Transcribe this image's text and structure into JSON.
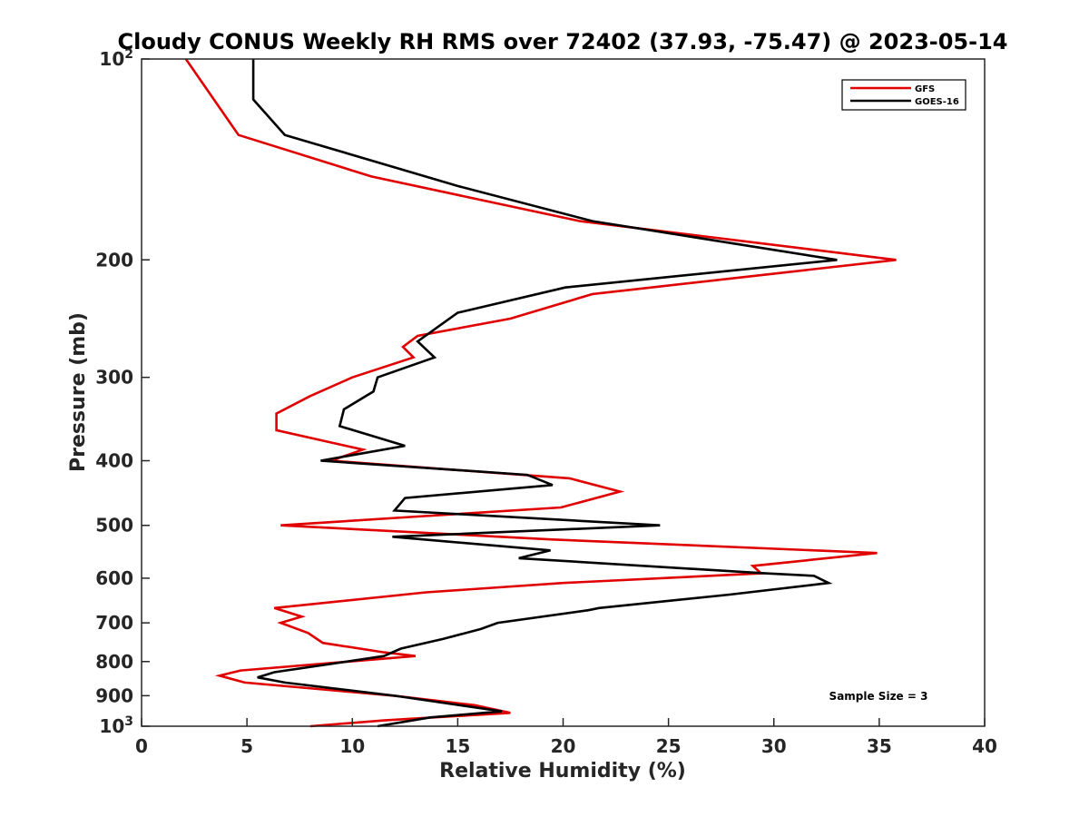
{
  "chart_data": {
    "type": "line",
    "title": "Cloudy CONUS Weekly RH RMS over 72402 (37.93, -75.47) @ 2023-05-14",
    "xlabel": "Relative Humidity (%)",
    "ylabel": "Pressure (mb)",
    "xlim": [
      0,
      40
    ],
    "ylim": [
      100,
      1000
    ],
    "y_scale": "log",
    "y_reversed": true,
    "grid": false,
    "legend_position": "top-right",
    "annotation": "Sample Size = 3",
    "x_ticks": [
      "0",
      "5",
      "10",
      "15",
      "20",
      "25",
      "30",
      "35",
      "40"
    ],
    "y_ticks": [
      {
        "value": 100,
        "label": "10",
        "sup": "2"
      },
      {
        "value": 200,
        "label": "200",
        "sup": ""
      },
      {
        "value": 300,
        "label": "300",
        "sup": ""
      },
      {
        "value": 400,
        "label": "400",
        "sup": ""
      },
      {
        "value": 500,
        "label": "500",
        "sup": ""
      },
      {
        "value": 600,
        "label": "600",
        "sup": ""
      },
      {
        "value": 700,
        "label": "700",
        "sup": ""
      },
      {
        "value": 800,
        "label": "800",
        "sup": ""
      },
      {
        "value": 900,
        "label": "900",
        "sup": ""
      },
      {
        "value": 1000,
        "label": "10",
        "sup": "3"
      }
    ],
    "series": [
      {
        "name": "GFS",
        "color": "#e00000",
        "points": [
          [
            2.1,
            100
          ],
          [
            4.6,
            130
          ],
          [
            10.9,
            150
          ],
          [
            20.8,
            175
          ],
          [
            35.8,
            200
          ],
          [
            21.4,
            225
          ],
          [
            17.5,
            245
          ],
          [
            13.1,
            260
          ],
          [
            12.4,
            270
          ],
          [
            12.9,
            280
          ],
          [
            10.0,
            300
          ],
          [
            8.0,
            320
          ],
          [
            6.4,
            340
          ],
          [
            6.4,
            360
          ],
          [
            10.5,
            385
          ],
          [
            9.0,
            400
          ],
          [
            20.3,
            425
          ],
          [
            22.7,
            445
          ],
          [
            19.9,
            470
          ],
          [
            13.1,
            485
          ],
          [
            6.6,
            500
          ],
          [
            19.5,
            525
          ],
          [
            34.9,
            550
          ],
          [
            29.0,
            575
          ],
          [
            29.4,
            590
          ],
          [
            20.0,
            610
          ],
          [
            13.5,
            630
          ],
          [
            6.3,
            665
          ],
          [
            7.6,
            685
          ],
          [
            6.6,
            700
          ],
          [
            7.9,
            725
          ],
          [
            8.6,
            750
          ],
          [
            11.5,
            775
          ],
          [
            13.0,
            785
          ],
          [
            4.7,
            825
          ],
          [
            3.7,
            840
          ],
          [
            4.9,
            860
          ],
          [
            12.0,
            900
          ],
          [
            15.8,
            930
          ],
          [
            17.5,
            955
          ],
          [
            11.5,
            980
          ],
          [
            8.0,
            1000
          ]
        ]
      },
      {
        "name": "GOES-16",
        "color": "#000000",
        "points": [
          [
            5.3,
            100
          ],
          [
            5.3,
            115
          ],
          [
            6.8,
            130
          ],
          [
            15.0,
            155
          ],
          [
            21.4,
            175
          ],
          [
            33.0,
            200
          ],
          [
            20.1,
            220
          ],
          [
            15.0,
            240
          ],
          [
            13.1,
            265
          ],
          [
            13.9,
            280
          ],
          [
            11.2,
            300
          ],
          [
            11.0,
            315
          ],
          [
            9.6,
            335
          ],
          [
            9.4,
            355
          ],
          [
            12.5,
            380
          ],
          [
            8.5,
            400
          ],
          [
            18.3,
            420
          ],
          [
            19.5,
            435
          ],
          [
            12.5,
            455
          ],
          [
            12.0,
            475
          ],
          [
            24.6,
            500
          ],
          [
            11.9,
            520
          ],
          [
            19.4,
            545
          ],
          [
            17.9,
            560
          ],
          [
            29.6,
            590
          ],
          [
            31.9,
            595
          ],
          [
            32.6,
            610
          ],
          [
            27.9,
            635
          ],
          [
            21.7,
            665
          ],
          [
            21.2,
            670
          ],
          [
            16.9,
            700
          ],
          [
            16.1,
            715
          ],
          [
            14.3,
            740
          ],
          [
            12.3,
            765
          ],
          [
            11.5,
            785
          ],
          [
            6.3,
            830
          ],
          [
            5.5,
            845
          ],
          [
            6.8,
            860
          ],
          [
            12.0,
            900
          ],
          [
            17.1,
            950
          ],
          [
            13.7,
            970
          ],
          [
            11.2,
            1000
          ]
        ]
      }
    ]
  }
}
